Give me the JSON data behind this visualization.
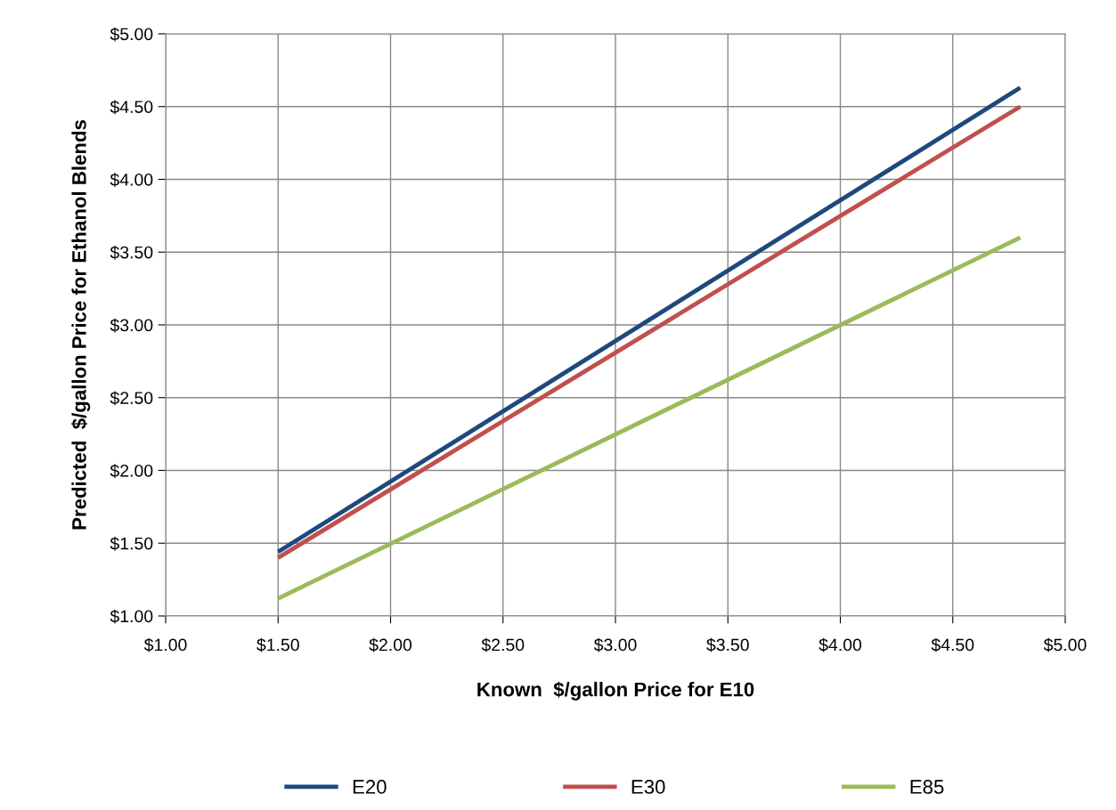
{
  "chart_data": {
    "type": "line",
    "xlabel": "Known  $/gallon Price for E10",
    "ylabel": "Predicted  $/gallon Price for Ethanol Blends",
    "x": [
      1.5,
      4.8
    ],
    "series": [
      {
        "name": "E20",
        "color": "#1f497d",
        "values": [
          1.44,
          4.63
        ]
      },
      {
        "name": "E30",
        "color": "#c0504d",
        "values": [
          1.4,
          4.5
        ]
      },
      {
        "name": "E85",
        "color": "#9bbb59",
        "values": [
          1.12,
          3.6
        ]
      }
    ],
    "xlim": [
      1,
      5
    ],
    "ylim": [
      1,
      5
    ],
    "xticks": [
      {
        "value": 1,
        "label": "$1.00"
      },
      {
        "value": 1.5,
        "label": "$1.50"
      },
      {
        "value": 2,
        "label": "$2.00"
      },
      {
        "value": 2.5,
        "label": "$2.50"
      },
      {
        "value": 3,
        "label": "$3.00"
      },
      {
        "value": 3.5,
        "label": "$3.50"
      },
      {
        "value": 4,
        "label": "$4.00"
      },
      {
        "value": 4.5,
        "label": "$4.50"
      },
      {
        "value": 5,
        "label": "$5.00"
      }
    ],
    "yticks": [
      {
        "value": 1,
        "label": "$1.00"
      },
      {
        "value": 1.5,
        "label": "$1.50"
      },
      {
        "value": 2,
        "label": "$2.00"
      },
      {
        "value": 2.5,
        "label": "$2.50"
      },
      {
        "value": 3,
        "label": "$3.00"
      },
      {
        "value": 3.5,
        "label": "$3.50"
      },
      {
        "value": 4,
        "label": "$4.00"
      },
      {
        "value": 4.5,
        "label": "$4.50"
      },
      {
        "value": 5,
        "label": "$5.00"
      }
    ],
    "grid": true,
    "legend": "bottom",
    "marker": "none",
    "line_style": "solid"
  }
}
